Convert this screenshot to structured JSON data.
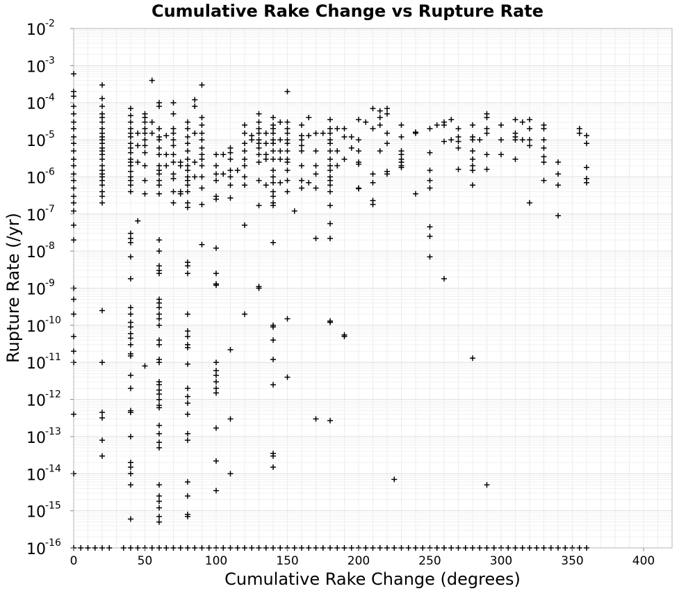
{
  "chart_data": {
    "type": "scatter",
    "title": "Cumulative Rake Change vs Rupture Rate",
    "xlabel": "Cumulative Rake Change (degrees)",
    "ylabel": "Rupture Rate (/yr)",
    "xlim": [
      0,
      420
    ],
    "ylim": [
      1e-16,
      0.01
    ],
    "yscale": "log",
    "grid": true,
    "marker": "+",
    "marker_color": "#000000",
    "x_ticks": [
      {
        "value": 0,
        "label": "0"
      },
      {
        "value": 50,
        "label": "50"
      },
      {
        "value": 100,
        "label": "100"
      },
      {
        "value": 150,
        "label": "150"
      },
      {
        "value": 200,
        "label": "200"
      },
      {
        "value": 250,
        "label": "250"
      },
      {
        "value": 300,
        "label": "300"
      },
      {
        "value": 350,
        "label": "350"
      },
      {
        "value": 400,
        "label": "400"
      }
    ],
    "y_ticks": [
      {
        "value": 0.01,
        "base": "10",
        "exp": "-2"
      },
      {
        "value": 0.001,
        "base": "10",
        "exp": "-3"
      },
      {
        "value": 0.0001,
        "base": "10",
        "exp": "-4"
      },
      {
        "value": 1e-05,
        "base": "10",
        "exp": "-5"
      },
      {
        "value": 1e-06,
        "base": "10",
        "exp": "-6"
      },
      {
        "value": 1e-07,
        "base": "10",
        "exp": "-7"
      },
      {
        "value": 1e-08,
        "base": "10",
        "exp": "-8"
      },
      {
        "value": 1e-09,
        "base": "10",
        "exp": "-9"
      },
      {
        "value": 1e-10,
        "base": "10",
        "exp": "-10"
      },
      {
        "value": 1e-11,
        "base": "10",
        "exp": "-11"
      },
      {
        "value": 1e-12,
        "base": "10",
        "exp": "-12"
      },
      {
        "value": 1e-13,
        "base": "10",
        "exp": "-13"
      },
      {
        "value": 1e-14,
        "base": "10",
        "exp": "-14"
      },
      {
        "value": 1e-15,
        "base": "10",
        "exp": "-15"
      },
      {
        "value": 1e-16,
        "base": "10",
        "exp": "-16"
      }
    ],
    "series": [
      {
        "columns": [
          {
            "x": 0,
            "y": [
              0.0006,
              0.0002,
              0.00015,
              8e-05,
              5e-05,
              3e-05,
              2e-05,
              1.2e-05,
              8e-06,
              5e-06,
              3e-06,
              2e-06,
              1.2e-06,
              8e-07,
              5e-07,
              3e-07,
              2e-07,
              1.2e-07,
              5e-08,
              2e-08,
              1e-09,
              5e-10,
              2e-10,
              5e-11,
              2e-11,
              1e-11,
              4e-13,
              1e-14
            ]
          },
          {
            "x": 20,
            "y": [
              0.0003,
              0.00013,
              8e-05,
              5e-05,
              4e-05,
              3e-05,
              2e-05,
              1.5e-05,
              1.2e-05,
              1e-05,
              8e-06,
              6e-06,
              5e-06,
              4e-06,
              3e-06,
              2e-06,
              1.5e-06,
              1.2e-06,
              1e-06,
              8e-07,
              6e-07,
              4e-07,
              3e-07,
              2e-07,
              2.5e-10,
              1e-11,
              4.5e-13,
              3.2e-13,
              8e-14,
              3e-14
            ]
          },
          {
            "x": 40,
            "y": [
              7e-05,
              4.5e-05,
              3e-05,
              2e-05,
              1.5e-05,
              1.2e-05,
              8e-06,
              6e-06,
              4.5e-06,
              3e-06,
              2.5e-06,
              2e-06,
              1.4e-06,
              1e-06,
              8e-07,
              6e-07,
              4e-07,
              3e-08,
              2.2e-08,
              1.7e-08,
              7e-09,
              1.8e-09,
              3e-10,
              2e-10,
              1.2e-10,
              9e-11,
              6e-11,
              4.5e-11,
              3e-11,
              1.7e-11,
              1.5e-11,
              4.5e-12,
              2e-12,
              5e-13,
              4.5e-13,
              1e-13,
              2e-14,
              1.5e-14,
              1e-14,
              5e-15,
              6e-16
            ]
          },
          {
            "x": 45,
            "y": [
              1.5e-05,
              7e-06,
              2.5e-06,
              6.5e-08
            ]
          },
          {
            "x": 50,
            "y": [
              5e-05,
              4e-05,
              3e-05,
              2e-05,
              1.5e-05,
              1e-05,
              7e-06,
              4.5e-06,
              2e-06,
              8e-07,
              3.5e-07,
              8e-12
            ]
          },
          {
            "x": 55,
            "y": [
              0.0004,
              3e-05,
              1.5e-05
            ]
          },
          {
            "x": 60,
            "y": [
              0.0001,
              8e-05,
              2e-05,
              1.2e-05,
              1e-05,
              6e-06,
              4e-06,
              2e-06,
              1.5e-06,
              1.2e-06,
              8e-07,
              6e-07,
              3.5e-07,
              2e-08,
              1e-08,
              4e-09,
              3e-09,
              2.5e-09,
              5e-10,
              4e-10,
              3e-10,
              2e-10,
              1.5e-10,
              1e-10,
              4e-11,
              3e-11,
              1.2e-11,
              1e-11,
              3e-12,
              2.5e-12,
              1.8e-12,
              1.4e-12,
              1e-12,
              7e-13,
              6e-13,
              2e-13,
              1.2e-13,
              7e-14,
              5e-14,
              5e-15,
              2.5e-15,
              1.8e-15,
              1.2e-15,
              7e-16,
              5e-16
            ]
          },
          {
            "x": 65,
            "y": [
              1.3e-05,
              4e-06,
              2e-06
            ]
          },
          {
            "x": 70,
            "y": [
              0.0001,
              5e-05,
              2e-05,
              1.5e-05,
              1e-05,
              7e-06,
              4e-06,
              2.5e-06,
              1.2e-06,
              9e-07,
              4e-07,
              2e-07
            ]
          },
          {
            "x": 75,
            "y": [
              2.5e-06,
              2e-06,
              4e-07,
              3.5e-07
            ]
          },
          {
            "x": 80,
            "y": [
              3e-05,
              2e-05,
              1.2e-05,
              8e-06,
              5e-06,
              3e-06,
              2e-06,
              1.5e-06,
              1e-06,
              8e-07,
              6e-07,
              4e-07,
              2e-07,
              1.5e-07,
              5e-09,
              4e-09,
              2.5e-09,
              2e-10,
              7e-11,
              5e-11,
              3e-11,
              2.5e-11,
              9e-12,
              2e-12,
              1.2e-12,
              8e-13,
              4e-13,
              1.2e-13,
              8e-14,
              6e-15,
              2.5e-15,
              8e-16,
              7e-16
            ]
          },
          {
            "x": 85,
            "y": [
              0.00012,
              8e-05,
              1.5e-05,
              2.5e-06,
              1e-06
            ]
          },
          {
            "x": 90,
            "y": [
              0.0003,
              4e-05,
              2.5e-05,
              1.5e-05,
              1e-05,
              6e-06,
              4e-06,
              3e-06,
              2e-06,
              1e-06,
              5e-07,
              1.8e-07,
              1.5e-08
            ]
          },
          {
            "x": 100,
            "y": [
              4e-06,
              2e-06,
              1.2e-06,
              8e-07,
              3e-07,
              2.5e-07,
              1.2e-08,
              2.5e-09,
              1.3e-09,
              1.2e-09,
              1e-11,
              6e-12,
              4.5e-12,
              3e-12,
              2e-12,
              1.5e-12,
              1.7e-13,
              2.2e-14,
              3.5e-15
            ]
          },
          {
            "x": 105,
            "y": [
              4e-06,
              1.2e-06
            ]
          },
          {
            "x": 110,
            "y": [
              6e-06,
              4.5e-06,
              3e-06,
              1.5e-06,
              1e-06,
              6e-07,
              2.7e-07,
              2.2e-11,
              3e-13,
              1e-14
            ]
          },
          {
            "x": 115,
            "y": [
              1.5e-06
            ]
          },
          {
            "x": 120,
            "y": [
              2.5e-05,
              1.5e-05,
              8e-06,
              5e-06,
              3e-06,
              2e-06,
              1e-06,
              6e-07,
              5e-08,
              2e-10
            ]
          },
          {
            "x": 125,
            "y": [
              1.3e-05,
              1e-05
            ]
          },
          {
            "x": 130,
            "y": [
              5e-05,
              3e-05,
              2e-05,
              1.5e-05,
              1e-05,
              8e-06,
              6e-06,
              4e-06,
              2.5e-06,
              8e-07,
              1.7e-07,
              1.1e-09,
              1e-09
            ]
          },
          {
            "x": 135,
            "y": [
              1.5e-05,
              8e-06,
              4e-06,
              3e-06,
              6e-07
            ]
          },
          {
            "x": 140,
            "y": [
              4e-05,
              2.5e-05,
              2e-05,
              1.5e-05,
              1e-05,
              8e-06,
              5e-06,
              3e-06,
              1.5e-06,
              1e-06,
              7e-07,
              4e-07,
              3e-07,
              2e-07,
              1.7e-07,
              1.7e-08,
              1e-10,
              9e-11,
              4e-11,
              1.2e-11,
              2.5e-12,
              3.5e-14,
              3e-14,
              1.5e-14
            ]
          },
          {
            "x": 145,
            "y": [
              3e-05,
              1e-05,
              5e-06,
              3e-06,
              7e-07
            ]
          },
          {
            "x": 150,
            "y": [
              0.0002,
              3e-05,
              2e-05,
              1.5e-05,
              1e-05,
              8e-06,
              5e-06,
              3e-06,
              2.5e-06,
              1.5e-06,
              8e-07,
              4e-07,
              1.5e-10,
              4e-12
            ]
          },
          {
            "x": 155,
            "y": [
              1.2e-07
            ]
          },
          {
            "x": 160,
            "y": [
              2.5e-05,
              1.3e-05,
              1e-05,
              7e-06,
              5e-06,
              2e-06,
              8e-07,
              5e-07
            ]
          },
          {
            "x": 165,
            "y": [
              4e-05,
              1.3e-05,
              7e-07
            ]
          },
          {
            "x": 170,
            "y": [
              1.5e-05,
              5e-06,
              2e-06,
              1.2e-06,
              5e-07,
              2.2e-08,
              3e-13
            ]
          },
          {
            "x": 175,
            "y": [
              1.5e-05
            ]
          },
          {
            "x": 180,
            "y": [
              3.5e-05,
              2e-05,
              1.5e-05,
              1e-05,
              8e-06,
              5e-06,
              3e-06,
              2e-06,
              1.5e-06,
              1e-06,
              8e-07,
              6e-07,
              4e-07,
              1.7e-07,
              5.5e-08,
              2.2e-08,
              1.3e-10,
              1.2e-10,
              2.7e-13
            ]
          },
          {
            "x": 185,
            "y": [
              2e-05,
              5e-06,
              2e-06
            ]
          },
          {
            "x": 190,
            "y": [
              2e-05,
              1.2e-05,
              3e-06,
              5.5e-11,
              5e-11
            ]
          },
          {
            "x": 195,
            "y": [
              1.2e-05,
              6e-06
            ]
          },
          {
            "x": 200,
            "y": [
              3.5e-05,
              1e-05,
              5e-06,
              2.5e-06,
              2.2e-06,
              5e-07,
              4.8e-07
            ]
          },
          {
            "x": 205,
            "y": [
              3e-05
            ]
          },
          {
            "x": 210,
            "y": [
              7e-05,
              2e-05,
              1.2e-06,
              7e-07,
              2.3e-07,
              1.8e-07
            ]
          },
          {
            "x": 215,
            "y": [
              6e-05,
              2.5e-05,
              4e-05,
              5e-06
            ]
          },
          {
            "x": 220,
            "y": [
              7e-05,
              5e-05,
              1.5e-05,
              8e-06,
              1.4e-06,
              1.2e-06
            ]
          },
          {
            "x": 225,
            "y": [
              7e-15
            ]
          },
          {
            "x": 230,
            "y": [
              2.5e-05,
              1.2e-05,
              5e-06,
              4e-06,
              3e-06,
              2.5e-06,
              2e-06,
              1.8e-06
            ]
          },
          {
            "x": 240,
            "y": [
              1.6e-05,
              1.5e-05,
              3.5e-07
            ]
          },
          {
            "x": 250,
            "y": [
              2e-05,
              4.5e-06,
              1.5e-06,
              8e-07,
              5e-07,
              4.5e-08,
              2.5e-08,
              7e-09
            ]
          },
          {
            "x": 255,
            "y": [
              2.5e-05
            ]
          },
          {
            "x": 260,
            "y": [
              3e-05,
              2.5e-05,
              9e-06,
              1.8e-09
            ]
          },
          {
            "x": 265,
            "y": [
              3.5e-05,
              1e-05
            ]
          },
          {
            "x": 270,
            "y": [
              2e-05,
              1.2e-05,
              9e-06,
              6e-06,
              1.6e-06
            ]
          },
          {
            "x": 280,
            "y": [
              2.5e-05,
              1.2e-05,
              1e-05,
              5e-06,
              3e-06,
              2e-06,
              1.5e-06,
              6e-07,
              1.3e-11
            ]
          },
          {
            "x": 285,
            "y": [
              1e-05
            ]
          },
          {
            "x": 290,
            "y": [
              5e-05,
              4e-05,
              2e-05,
              1.5e-05,
              4e-06,
              1.6e-06,
              5e-15
            ]
          },
          {
            "x": 300,
            "y": [
              2.5e-05,
              1e-05,
              4e-06
            ]
          },
          {
            "x": 310,
            "y": [
              3.5e-05,
              1.5e-05,
              1.2e-05,
              1e-05,
              3e-06
            ]
          },
          {
            "x": 315,
            "y": [
              3e-05,
              1e-05
            ]
          },
          {
            "x": 320,
            "y": [
              3.5e-05,
              2e-05,
              1e-05,
              7e-06,
              2e-07
            ]
          },
          {
            "x": 330,
            "y": [
              2.5e-05,
              2e-05,
              1e-05,
              6e-06,
              3.5e-06,
              2.5e-06,
              8e-07
            ]
          },
          {
            "x": 340,
            "y": [
              2.5e-06,
              1.2e-06,
              6e-07,
              9e-08
            ]
          },
          {
            "x": 355,
            "y": [
              2e-05,
              1.5e-05
            ]
          },
          {
            "x": 360,
            "y": [
              1.3e-05,
              8e-06,
              1.8e-06,
              9e-07,
              7e-07
            ]
          }
        ],
        "floor_y": 1e-16,
        "floor_x": [
          0,
          5,
          10,
          15,
          20,
          25,
          35,
          40,
          45,
          50,
          55,
          60,
          65,
          70,
          75,
          80,
          85,
          90,
          95,
          100,
          105,
          110,
          115,
          120,
          125,
          130,
          135,
          140,
          145,
          150,
          155,
          160,
          165,
          170,
          175,
          180,
          185,
          190,
          195,
          200,
          205,
          210,
          215,
          220,
          225,
          230,
          235,
          240,
          245,
          250,
          255,
          260,
          265,
          270,
          275,
          280,
          285,
          290,
          295,
          300,
          305,
          310,
          315,
          320,
          325,
          330,
          335,
          340,
          345,
          350,
          355,
          360
        ]
      }
    ]
  }
}
